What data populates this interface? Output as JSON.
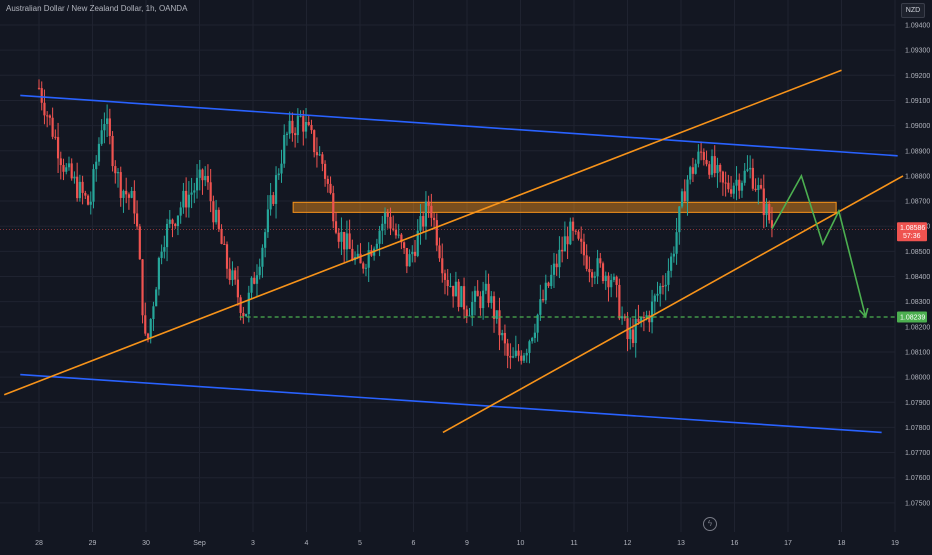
{
  "header": {
    "symbol_title": "Australian Dollar / New Zealand Dollar, 1h, OANDA"
  },
  "currency_button": "NZD",
  "lightning_icon": "lightning-icon",
  "colors": {
    "background": "#131722",
    "grid": "#1f2330",
    "up": "#26a69a",
    "down": "#ef5350",
    "channel": "#2962ff",
    "wedge": "#f7931a",
    "zone": "#f7931a",
    "projection": "#4caf50",
    "target": "#4caf50",
    "price_label": "#ef5350",
    "axis_text": "#b2b5be"
  },
  "chart_data": {
    "type": "candlestick",
    "title": "Australian Dollar / New Zealand Dollar, 1h, OANDA",
    "xlabel": "",
    "ylabel": "",
    "grid": true,
    "x_ticks": [
      "28",
      "29",
      "30",
      "Sep",
      "3",
      "4",
      "5",
      "6",
      "9",
      "10",
      "11",
      "12",
      "13",
      "16",
      "17",
      "18",
      "19"
    ],
    "y_ticks": [
      "1.09400",
      "1.09300",
      "1.09200",
      "1.09100",
      "1.09000",
      "1.08900",
      "1.08800",
      "1.08700",
      "1.08600",
      "1.08500",
      "1.08400",
      "1.08300",
      "1.08200",
      "1.08100",
      "1.08000",
      "1.07900",
      "1.07800",
      "1.07700",
      "1.07600",
      "1.07500"
    ],
    "ylim": [
      1.0745,
      1.0945
    ],
    "current_price": {
      "value": "1.08586",
      "countdown": "57:36"
    },
    "target_price": {
      "value": "1.08239"
    },
    "price_path": [
      {
        "x": 0,
        "y": 1.0915
      },
      {
        "x": 0.5,
        "y": 1.0882
      },
      {
        "x": 0.95,
        "y": 1.0868
      },
      {
        "x": 1.2,
        "y": 1.0905
      },
      {
        "x": 1.5,
        "y": 1.0877
      },
      {
        "x": 1.8,
        "y": 1.0868
      },
      {
        "x": 2.0,
        "y": 1.081
      },
      {
        "x": 2.3,
        "y": 1.0855
      },
      {
        "x": 2.7,
        "y": 1.087
      },
      {
        "x": 3.1,
        "y": 1.088
      },
      {
        "x": 3.5,
        "y": 1.0845
      },
      {
        "x": 3.85,
        "y": 1.0825
      },
      {
        "x": 4.2,
        "y": 1.0855
      },
      {
        "x": 4.6,
        "y": 1.0895
      },
      {
        "x": 4.9,
        "y": 1.0903
      },
      {
        "x": 5.3,
        "y": 1.0885
      },
      {
        "x": 5.6,
        "y": 1.0858
      },
      {
        "x": 6.0,
        "y": 1.0843
      },
      {
        "x": 6.5,
        "y": 1.0865
      },
      {
        "x": 6.9,
        "y": 1.0845
      },
      {
        "x": 7.3,
        "y": 1.087
      },
      {
        "x": 7.6,
        "y": 1.084
      },
      {
        "x": 8.0,
        "y": 1.0828
      },
      {
        "x": 8.4,
        "y": 1.0833
      },
      {
        "x": 8.8,
        "y": 1.0805
      },
      {
        "x": 9.1,
        "y": 1.0812
      },
      {
        "x": 9.5,
        "y": 1.0835
      },
      {
        "x": 9.9,
        "y": 1.0858
      },
      {
        "x": 10.3,
        "y": 1.0845
      },
      {
        "x": 10.7,
        "y": 1.084
      },
      {
        "x": 11.0,
        "y": 1.0815
      },
      {
        "x": 11.4,
        "y": 1.0825
      },
      {
        "x": 11.8,
        "y": 1.0845
      },
      {
        "x": 12.1,
        "y": 1.0878
      },
      {
        "x": 12.4,
        "y": 1.089
      },
      {
        "x": 12.8,
        "y": 1.0875
      },
      {
        "x": 13.3,
        "y": 1.0882
      },
      {
        "x": 13.7,
        "y": 1.086
      }
    ],
    "drawings": {
      "blue_channel_upper": [
        [
          -0.35,
          1.0912
        ],
        [
          16.05,
          1.0888
        ]
      ],
      "blue_channel_lower": [
        [
          -0.35,
          1.0801
        ],
        [
          15.75,
          1.0778
        ]
      ],
      "orange_wedge_upper": [
        [
          -0.65,
          1.0793
        ],
        [
          15.0,
          1.0922
        ]
      ],
      "orange_wedge_lower": [
        [
          7.55,
          1.0778
        ],
        [
          16.15,
          1.088
        ]
      ],
      "resistance_zone": {
        "x": [
          4.75,
          14.9
        ],
        "y": [
          1.08655,
          1.08695
        ]
      },
      "target_line": {
        "x": [
          3.75,
          17.15
        ],
        "y": 1.08239
      },
      "projection_path": [
        [
          13.7,
          1.0859
        ],
        [
          14.25,
          1.088
        ],
        [
          14.65,
          1.0853
        ],
        [
          14.95,
          1.0866
        ],
        [
          15.45,
          1.0824
        ]
      ]
    }
  }
}
